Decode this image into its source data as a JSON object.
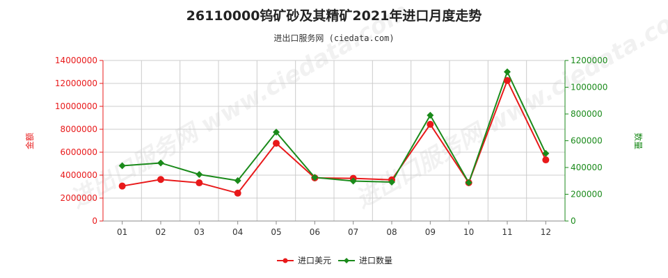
{
  "title": "26110000钨矿砂及其精矿2021年进口月度走势",
  "subtitle": "进出口服务网 (ciedata.com)",
  "watermark": "进出口服务网 www.ciedata.com",
  "colors": {
    "amount": "#e8191a",
    "quantity": "#1a8a1a",
    "grid": "#cccccc",
    "axis": "#888888"
  },
  "chart_data": {
    "type": "line",
    "categories": [
      "01",
      "02",
      "03",
      "04",
      "05",
      "06",
      "07",
      "08",
      "09",
      "10",
      "11",
      "12"
    ],
    "series": [
      {
        "name": "进口美元",
        "axis": "left",
        "values": [
          3050000,
          3620000,
          3330000,
          2430000,
          6780000,
          3760000,
          3720000,
          3590000,
          8430000,
          3340000,
          12250000,
          5330000
        ]
      },
      {
        "name": "进口数量",
        "axis": "right",
        "values": [
          413000,
          434000,
          348000,
          302000,
          664000,
          326000,
          299000,
          291000,
          790000,
          287000,
          1115000,
          505000
        ]
      }
    ],
    "ylabel_left": "金额",
    "ylabel_right": "数量",
    "ylim_left": [
      0,
      14000000
    ],
    "ylim_right": [
      0,
      1200000
    ],
    "yticks_left": [
      "0",
      "2000000",
      "4000000",
      "6000000",
      "8000000",
      "10000000",
      "12000000",
      "14000000"
    ],
    "yticks_right": [
      "0",
      "200000",
      "400000",
      "600000",
      "800000",
      "1000000",
      "1200000"
    ],
    "grid": true,
    "legend": "bottom-center"
  }
}
